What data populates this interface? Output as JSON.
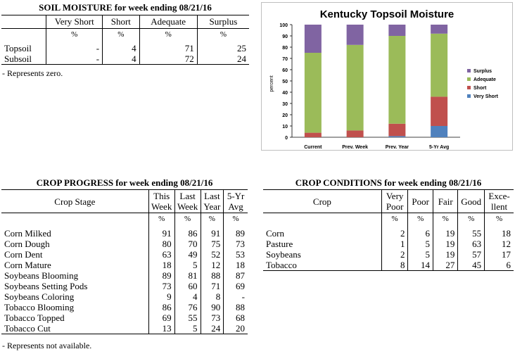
{
  "soil": {
    "title": "SOIL MOISTURE for week ending 08/21/16",
    "headers": [
      "",
      "Very Short",
      "Short",
      "Adequate",
      "Surplus"
    ],
    "units": [
      "",
      "%",
      "%",
      "%",
      "%"
    ],
    "rows": [
      {
        "label": "Topsoil",
        "cells": [
          "-",
          "4",
          "71",
          "25"
        ]
      },
      {
        "label": "Subsoil",
        "cells": [
          "-",
          "4",
          "72",
          "24"
        ]
      }
    ],
    "note": "- Represents zero."
  },
  "progress": {
    "title": "CROP PROGRESS for week ending 08/21/16",
    "headers": [
      {
        "line1": "Crop Stage",
        "line2": ""
      },
      {
        "line1": "This",
        "line2": "Week"
      },
      {
        "line1": "Last",
        "line2": "Week"
      },
      {
        "line1": "Last",
        "line2": "Year"
      },
      {
        "line1": "5-Yr",
        "line2": "Avg"
      }
    ],
    "units": [
      "",
      "%",
      "%",
      "%",
      "%"
    ],
    "rows": [
      {
        "label": "Corn Milked",
        "cells": [
          "91",
          "86",
          "91",
          "89"
        ]
      },
      {
        "label": "Corn Dough",
        "cells": [
          "80",
          "70",
          "75",
          "73"
        ]
      },
      {
        "label": "Corn Dent",
        "cells": [
          "63",
          "49",
          "52",
          "53"
        ]
      },
      {
        "label": "Corn Mature",
        "cells": [
          "18",
          "5",
          "12",
          "18"
        ]
      },
      {
        "label": "Soybeans Blooming",
        "cells": [
          "89",
          "81",
          "88",
          "87"
        ]
      },
      {
        "label": "Soybeans Setting Pods",
        "cells": [
          "73",
          "60",
          "71",
          "69"
        ]
      },
      {
        "label": "Soybeans Coloring",
        "cells": [
          "9",
          "4",
          "8",
          "-"
        ]
      },
      {
        "label": "Tobacco Blooming",
        "cells": [
          "86",
          "76",
          "90",
          "88"
        ]
      },
      {
        "label": "Tobacco Topped",
        "cells": [
          "69",
          "55",
          "73",
          "68"
        ]
      },
      {
        "label": "Tobacco Cut",
        "cells": [
          "13",
          "5",
          "24",
          "20"
        ]
      }
    ],
    "note": "- Represents not available."
  },
  "conditions": {
    "title": "CROP CONDITIONS for week ending 08/21/16",
    "headers": [
      {
        "line1": "Crop",
        "line2": ""
      },
      {
        "line1": "Very",
        "line2": "Poor"
      },
      {
        "line1": "Poor",
        "line2": ""
      },
      {
        "line1": "Fair",
        "line2": ""
      },
      {
        "line1": "Good",
        "line2": ""
      },
      {
        "line1": "Exce-",
        "line2": "llent"
      }
    ],
    "units": [
      "",
      "%",
      "%",
      "%",
      "%",
      "%"
    ],
    "rows": [
      {
        "label": "Corn",
        "cells": [
          "2",
          "6",
          "19",
          "55",
          "18"
        ]
      },
      {
        "label": "Pasture",
        "cells": [
          "1",
          "5",
          "19",
          "63",
          "12"
        ]
      },
      {
        "label": "Soybeans",
        "cells": [
          "2",
          "5",
          "19",
          "57",
          "17"
        ]
      },
      {
        "label": "Tobacco",
        "cells": [
          "8",
          "14",
          "27",
          "45",
          "6"
        ]
      }
    ]
  },
  "chart_data": {
    "type": "bar",
    "stacked": true,
    "title": "Kentucky Topsoil Moisture",
    "ylabel": "percent",
    "xlabel": "",
    "ylim": [
      0,
      100
    ],
    "yticks": [
      0,
      10,
      20,
      30,
      40,
      50,
      60,
      70,
      80,
      90,
      100
    ],
    "categories": [
      "Current",
      "Prev. Week",
      "Prev. Year",
      "5-Yr Avg"
    ],
    "series": [
      {
        "name": "Very Short",
        "color": "#4f81bd",
        "values": [
          0,
          0,
          1,
          10
        ]
      },
      {
        "name": "Short",
        "color": "#c0504d",
        "values": [
          4,
          6,
          11,
          26
        ]
      },
      {
        "name": "Adequate",
        "color": "#9bbb59",
        "values": [
          71,
          76,
          78,
          56
        ]
      },
      {
        "name": "Surplus",
        "color": "#8064a2",
        "values": [
          25,
          18,
          10,
          8
        ]
      }
    ],
    "legend_order": [
      "Surplus",
      "Adequate",
      "Short",
      "Very Short"
    ],
    "legend_position": "right",
    "grid": false
  }
}
